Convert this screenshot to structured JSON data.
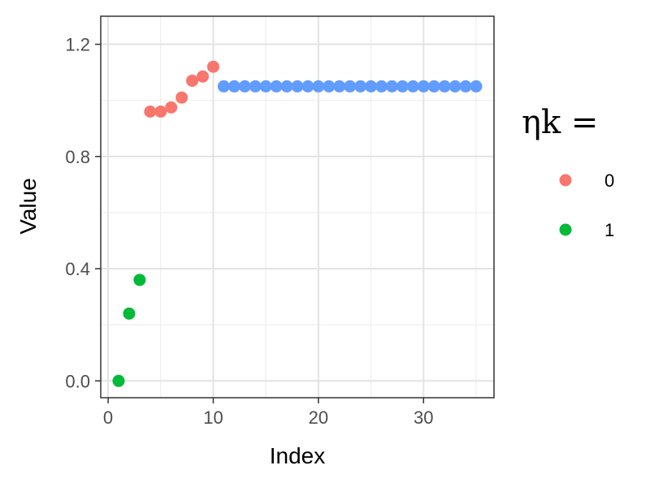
{
  "chart_data": {
    "type": "scatter",
    "title": "",
    "xlabel": "Index",
    "ylabel": "Value",
    "xlim": [
      -0.7,
      36.7
    ],
    "ylim": [
      -0.06,
      1.3
    ],
    "x_ticks": [
      0,
      10,
      20,
      30
    ],
    "y_ticks": [
      0.0,
      0.4,
      0.8,
      1.2
    ],
    "x_tick_labels": [
      "0",
      "10",
      "20",
      "30"
    ],
    "y_tick_labels": [
      "0.0",
      "0.4",
      "0.8",
      "1.2"
    ],
    "grid": true,
    "legend": {
      "title": "ηk =",
      "position": "right"
    },
    "series": [
      {
        "name": "0",
        "color": "#F8766D",
        "x": [
          4,
          5,
          6,
          7,
          8,
          9,
          10
        ],
        "y": [
          0.96,
          0.96,
          0.975,
          1.01,
          1.07,
          1.085,
          1.12
        ]
      },
      {
        "name": "1",
        "color": "#00BA38",
        "x": [
          1,
          2,
          3
        ],
        "y": [
          0.0,
          0.24,
          0.36
        ]
      },
      {
        "color": "#619CFF",
        "x": [
          11,
          12,
          13,
          14,
          15,
          16,
          17,
          18,
          19,
          20,
          21,
          22,
          23,
          24,
          25,
          26,
          27,
          28,
          29,
          30,
          31,
          32,
          33,
          34,
          35
        ],
        "y": [
          1.05,
          1.05,
          1.05,
          1.05,
          1.05,
          1.05,
          1.05,
          1.05,
          1.05,
          1.05,
          1.05,
          1.05,
          1.05,
          1.05,
          1.05,
          1.05,
          1.05,
          1.05,
          1.05,
          1.05,
          1.05,
          1.05,
          1.05,
          1.05,
          1.05
        ]
      }
    ]
  }
}
